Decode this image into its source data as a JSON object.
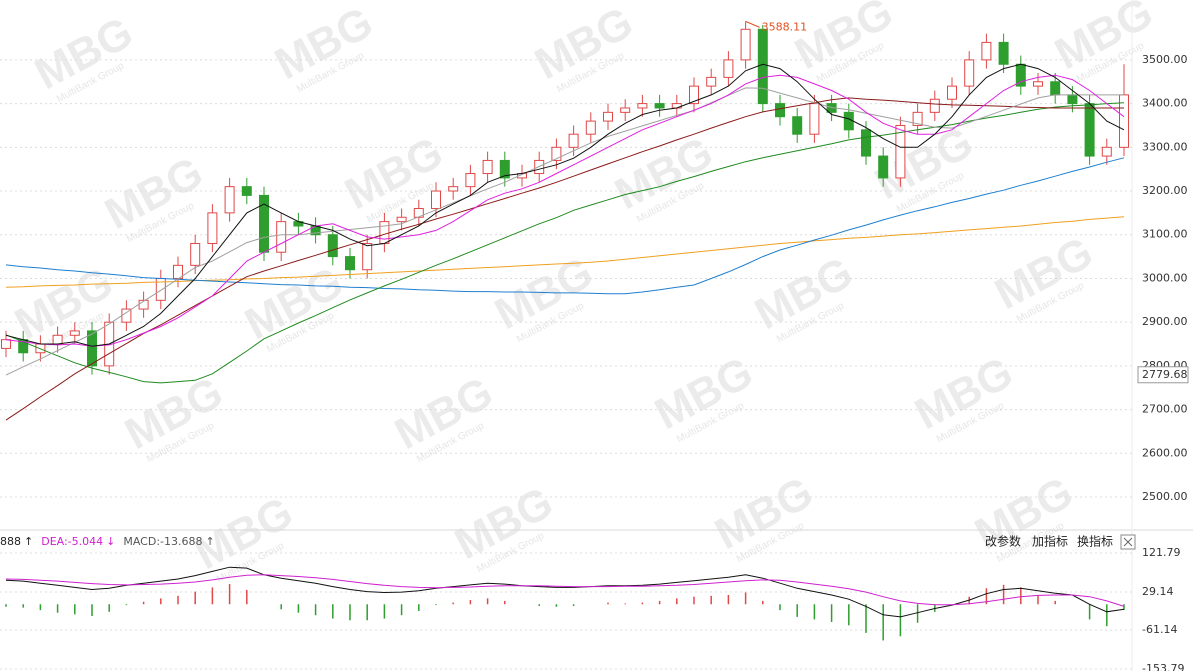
{
  "watermark": {
    "logo": "MBG",
    "text": "MultiBank Group"
  },
  "chart_data": [
    {
      "type": "candlestick",
      "up_color": "#e04848",
      "down_color": "#2e9e2e",
      "open": [
        2840,
        2860,
        2830,
        2850,
        2870,
        2880,
        2800,
        2900,
        2930,
        2950,
        3000,
        3030,
        3080,
        3150,
        3210,
        3190,
        3060,
        3130,
        3120,
        3100,
        3050,
        3020,
        3080,
        3130,
        3140,
        3160,
        3200,
        3210,
        3240,
        3270,
        3230,
        3240,
        3270,
        3300,
        3330,
        3360,
        3380,
        3390,
        3400,
        3390,
        3400,
        3440,
        3460,
        3500,
        3570,
        3400,
        3370,
        3330,
        3400,
        3380,
        3340,
        3280,
        3230,
        3350,
        3380,
        3410,
        3440,
        3500,
        3540,
        3490,
        3440,
        3450,
        3420,
        3400,
        3280,
        3300
      ],
      "high": [
        2880,
        2880,
        2870,
        2890,
        2900,
        2900,
        2920,
        2950,
        2970,
        3020,
        3050,
        3100,
        3170,
        3230,
        3230,
        3210,
        3150,
        3150,
        3140,
        3120,
        3070,
        3100,
        3150,
        3160,
        3180,
        3220,
        3230,
        3260,
        3290,
        3290,
        3260,
        3290,
        3320,
        3350,
        3380,
        3400,
        3410,
        3420,
        3420,
        3420,
        3460,
        3480,
        3520,
        3588.11,
        3580,
        3420,
        3390,
        3420,
        3420,
        3400,
        3360,
        3300,
        3370,
        3400,
        3430,
        3460,
        3520,
        3560,
        3560,
        3510,
        3470,
        3470,
        3440,
        3420,
        3320,
        3490
      ],
      "low": [
        2820,
        2810,
        2810,
        2830,
        2850,
        2780,
        2780,
        2880,
        2910,
        2930,
        2980,
        3010,
        3060,
        3130,
        3170,
        3040,
        3040,
        3100,
        3080,
        3030,
        3000,
        3000,
        3060,
        3110,
        3120,
        3140,
        3180,
        3190,
        3220,
        3210,
        3210,
        3220,
        3250,
        3280,
        3310,
        3340,
        3360,
        3370,
        3370,
        3370,
        3380,
        3420,
        3440,
        3480,
        3380,
        3350,
        3310,
        3310,
        3360,
        3320,
        3260,
        3210,
        3210,
        3330,
        3360,
        3390,
        3420,
        3480,
        3470,
        3420,
        3420,
        3400,
        3380,
        3260,
        3260,
        3280
      ],
      "close": [
        2860,
        2830,
        2850,
        2870,
        2880,
        2800,
        2900,
        2930,
        2950,
        3000,
        3030,
        3080,
        3150,
        3210,
        3190,
        3060,
        3130,
        3120,
        3100,
        3050,
        3020,
        3080,
        3130,
        3140,
        3160,
        3200,
        3210,
        3240,
        3270,
        3230,
        3240,
        3270,
        3300,
        3330,
        3360,
        3380,
        3390,
        3400,
        3390,
        3400,
        3440,
        3460,
        3500,
        3570,
        3400,
        3370,
        3330,
        3400,
        3380,
        3340,
        3280,
        3230,
        3350,
        3380,
        3410,
        3440,
        3500,
        3540,
        3490,
        3440,
        3450,
        3420,
        3400,
        3280,
        3300,
        3420
      ],
      "series": [
        {
          "color": "#f0a020",
          "values": [
            2980,
            2981,
            2983,
            2984,
            2985,
            2987,
            2988,
            2989,
            2991,
            2992,
            2993,
            2995,
            2996,
            2997,
            2999,
            3000,
            3002,
            3003,
            3005,
            3007,
            3009,
            3011,
            3013,
            3015,
            3017,
            3019,
            3021,
            3023,
            3025,
            3027,
            3029,
            3031,
            3033,
            3035,
            3037,
            3040,
            3044,
            3048,
            3052,
            3056,
            3060,
            3064,
            3068,
            3072,
            3076,
            3080,
            3083,
            3086,
            3089,
            3092,
            3094,
            3097,
            3100,
            3102,
            3105,
            3108,
            3111,
            3114,
            3117,
            3120,
            3124,
            3128,
            3131,
            3135,
            3138,
            3141
          ]
        },
        {
          "color": "#1e7fd0",
          "values": [
            3031,
            3027,
            3024,
            3020,
            3017,
            3013,
            3010,
            3006,
            3002,
            3000,
            2998,
            2996,
            2994,
            2992,
            2990,
            2988,
            2986,
            2985,
            2983,
            2982,
            2980,
            2979,
            2977,
            2976,
            2974,
            2973,
            2971,
            2970,
            2970,
            2969,
            2969,
            2968,
            2967,
            2967,
            2966,
            2965,
            2965,
            2969,
            2974,
            2980,
            2985,
            3000,
            3015,
            3032,
            3050,
            3065,
            3076,
            3088,
            3099,
            3111,
            3122,
            3134,
            3145,
            3155,
            3164,
            3174,
            3183,
            3193,
            3202,
            3213,
            3223,
            3234,
            3245,
            3255,
            3266,
            3276
          ]
        },
        {
          "color": "#1f8a1f",
          "values": [
            2871,
            2855,
            2839,
            2823,
            2807,
            2795,
            2785,
            2775,
            2764,
            2761,
            2764,
            2767,
            2782,
            2808,
            2834,
            2862,
            2880,
            2898,
            2915,
            2933,
            2951,
            2967,
            2983,
            2998,
            3014,
            3030,
            3045,
            3061,
            3077,
            3093,
            3109,
            3125,
            3139,
            3156,
            3168,
            3180,
            3192,
            3201,
            3210,
            3222,
            3233,
            3245,
            3256,
            3267,
            3276,
            3284,
            3292,
            3300,
            3308,
            3317,
            3323,
            3328,
            3334,
            3340,
            3346,
            3352,
            3360,
            3367,
            3373,
            3380,
            3387,
            3392,
            3395,
            3397,
            3400,
            3402
          ]
        },
        {
          "color": "#8b1a1a",
          "values": [
            2676,
            2702,
            2729,
            2755,
            2782,
            2805,
            2828,
            2851,
            2874,
            2894,
            2916,
            2938,
            2960,
            2982,
            3004,
            3017,
            3029,
            3041,
            3053,
            3065,
            3077,
            3089,
            3101,
            3113,
            3124,
            3136,
            3147,
            3159,
            3171,
            3183,
            3195,
            3207,
            3220,
            3234,
            3248,
            3262,
            3276,
            3290,
            3303,
            3317,
            3330,
            3344,
            3357,
            3370,
            3381,
            3388,
            3395,
            3402,
            3409,
            3413,
            3410,
            3408,
            3405,
            3402,
            3399,
            3397,
            3396,
            3395,
            3394,
            3392,
            3391,
            3390,
            3390,
            3390,
            3390,
            3390
          ]
        },
        {
          "color": "#a0a0a0",
          "values": [
            2779,
            2798,
            2816,
            2835,
            2854,
            2873,
            2896,
            2922,
            2948,
            2973,
            2999,
            3025,
            3040,
            3061,
            3082,
            3094,
            3100,
            3100,
            3104,
            3108,
            3112,
            3116,
            3120,
            3125,
            3141,
            3157,
            3173,
            3189,
            3205,
            3220,
            3238,
            3256,
            3274,
            3292,
            3310,
            3325,
            3337,
            3349,
            3361,
            3373,
            3384,
            3402,
            3419,
            3436,
            3435,
            3424,
            3413,
            3402,
            3391,
            3386,
            3378,
            3370,
            3362,
            3354,
            3346,
            3344,
            3357,
            3371,
            3385,
            3399,
            3413,
            3420,
            3420,
            3420,
            3420,
            3420
          ]
        },
        {
          "color": "#e020e0",
          "values": [
            2860,
            2855,
            2850,
            2848,
            2850,
            2845,
            2848,
            2860,
            2875,
            2890,
            2910,
            2935,
            2960,
            3000,
            3040,
            3060,
            3080,
            3100,
            3120,
            3125,
            3110,
            3095,
            3090,
            3095,
            3100,
            3110,
            3130,
            3155,
            3180,
            3195,
            3205,
            3220,
            3240,
            3260,
            3280,
            3300,
            3320,
            3340,
            3355,
            3370,
            3385,
            3400,
            3420,
            3445,
            3460,
            3465,
            3460,
            3445,
            3430,
            3410,
            3380,
            3355,
            3340,
            3330,
            3330,
            3340,
            3370,
            3400,
            3430,
            3450,
            3460,
            3465,
            3455,
            3430,
            3400,
            3370
          ]
        },
        {
          "color": "#111111",
          "values": [
            2870,
            2860,
            2850,
            2850,
            2855,
            2845,
            2850,
            2870,
            2890,
            2920,
            2960,
            3000,
            3050,
            3100,
            3150,
            3170,
            3150,
            3130,
            3120,
            3110,
            3090,
            3075,
            3080,
            3100,
            3120,
            3150,
            3170,
            3190,
            3220,
            3235,
            3240,
            3250,
            3260,
            3275,
            3300,
            3330,
            3355,
            3375,
            3385,
            3390,
            3405,
            3420,
            3440,
            3475,
            3490,
            3480,
            3450,
            3410,
            3375,
            3365,
            3345,
            3320,
            3300,
            3300,
            3330,
            3370,
            3420,
            3460,
            3480,
            3490,
            3480,
            3460,
            3430,
            3400,
            3360,
            3340
          ]
        }
      ],
      "price_marker": 2779.68,
      "ylim": [
        2436,
        3637
      ],
      "yticks": [
        {
          "value": 2500,
          "label": "2500.00"
        },
        {
          "value": 2600,
          "label": "2600.00"
        },
        {
          "value": 2700,
          "label": "2700.00"
        },
        {
          "value": 2800,
          "label": "2800.00"
        },
        {
          "value": 2900,
          "label": "2900.00"
        },
        {
          "value": 3000,
          "label": "3000.00"
        },
        {
          "value": 3100,
          "label": "3100.00"
        },
        {
          "value": 3200,
          "label": "3200.00"
        },
        {
          "value": 3300,
          "label": "3300.00"
        },
        {
          "value": 3400,
          "label": "3400.00"
        },
        {
          "value": 3500,
          "label": "3500.00"
        }
      ],
      "grid": true
    },
    {
      "type": "macd",
      "legend": [
        {
          "text": "888",
          "arrow": "↑",
          "color": "#222222"
        },
        {
          "text": "DEA:-5.044",
          "arrow": "↓",
          "color": "#d020d0"
        },
        {
          "text": "MACD:-13.688",
          "arrow": "↑",
          "color": "#555555"
        }
      ],
      "buttons": [
        "改参数",
        "加指标",
        "换指标"
      ],
      "up_color": "#e04848",
      "down_color": "#2e9e2e",
      "series": [
        {
          "color": "#111111",
          "values": [
            57,
            55,
            50,
            45,
            40,
            35,
            38,
            45,
            50,
            55,
            60,
            68,
            78,
            88,
            86,
            70,
            62,
            56,
            50,
            42,
            35,
            30,
            28,
            29,
            32,
            38,
            42,
            46,
            50,
            48,
            44,
            42,
            40,
            40,
            42,
            44,
            44,
            45,
            48,
            52,
            56,
            60,
            64,
            70,
            62,
            50,
            38,
            30,
            22,
            12,
            -5,
            -25,
            -30,
            -20,
            -10,
            -2,
            10,
            25,
            35,
            38,
            32,
            26,
            22,
            0,
            -18,
            -11.888
          ]
        },
        {
          "color": "#d020d0",
          "values": [
            60,
            59,
            57,
            55,
            52,
            49,
            47,
            46,
            47,
            48,
            50,
            53,
            58,
            64,
            69,
            70,
            68,
            66,
            63,
            59,
            54,
            49,
            45,
            42,
            40,
            39,
            40,
            41,
            43,
            44,
            44,
            44,
            43,
            42,
            42,
            42,
            43,
            43,
            44,
            45,
            47,
            50,
            53,
            56,
            58,
            57,
            53,
            48,
            43,
            37,
            29,
            18,
            8,
            2,
            -1,
            -1,
            1,
            6,
            12,
            18,
            21,
            22,
            22,
            18,
            8,
            -5.044
          ]
        }
      ],
      "values": [
        -6,
        -8,
        -14,
        -20,
        -24,
        -28,
        -18,
        -2,
        6,
        14,
        20,
        30,
        40,
        48,
        34,
        0,
        -12,
        -20,
        -26,
        -34,
        -38,
        -38,
        -34,
        -26,
        -16,
        -2,
        4,
        10,
        14,
        8,
        0,
        -4,
        -6,
        -4,
        0,
        4,
        2,
        4,
        8,
        14,
        18,
        20,
        22,
        28,
        8,
        -14,
        -30,
        -36,
        -42,
        -50,
        -68,
        -86,
        -76,
        -44,
        -18,
        -2,
        18,
        38,
        46,
        40,
        22,
        8,
        0,
        -36,
        -52,
        -13.688
      ],
      "ylim": [
        -158.6,
        133.7
      ],
      "yticks": [
        121.79,
        29.14,
        -61.14,
        -153.79
      ],
      "grid": true
    }
  ]
}
